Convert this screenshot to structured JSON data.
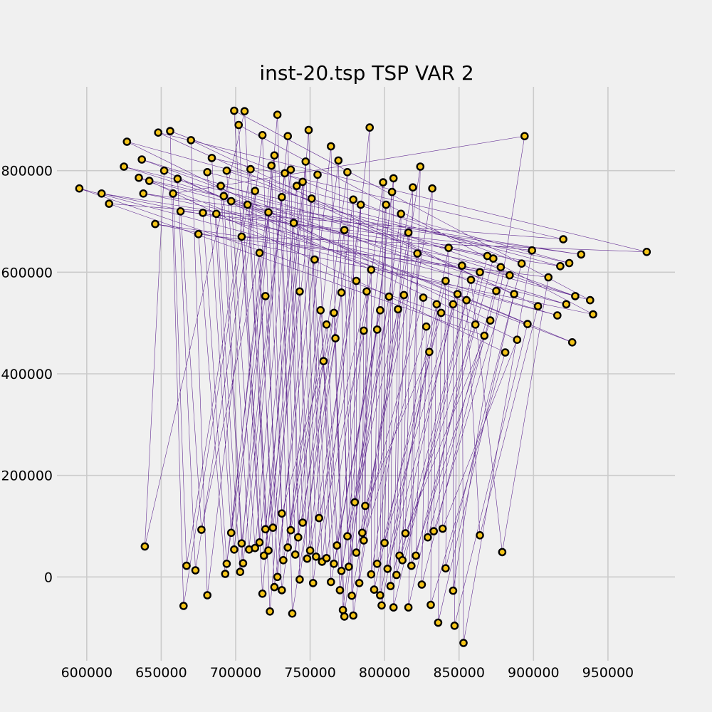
{
  "chart_data": {
    "type": "scatter",
    "title": "inst-20.tsp TSP VAR 2",
    "xlabel": "",
    "ylabel": "",
    "xlim": [
      580000,
      995000
    ],
    "ylim": [
      -165000,
      965000
    ],
    "xticks": [
      600000,
      650000,
      700000,
      750000,
      800000,
      850000,
      900000,
      950000
    ],
    "yticks": [
      0,
      200000,
      400000,
      600000,
      800000
    ],
    "xtick_labels": [
      "600000",
      "650000",
      "700000",
      "750000",
      "800000",
      "850000",
      "900000",
      "950000"
    ],
    "ytick_labels": [
      "0",
      "200000",
      "400000",
      "600000",
      "800000"
    ],
    "grid": true,
    "line_color": "#4a0a82",
    "point_fill": "#f5c518",
    "point_edge": "#000000",
    "points": [
      [
        595000,
        765000
      ],
      [
        610000,
        755000
      ],
      [
        615000,
        735000
      ],
      [
        625000,
        808000
      ],
      [
        627000,
        857000
      ],
      [
        635000,
        786000
      ],
      [
        637000,
        822000
      ],
      [
        638000,
        755000
      ],
      [
        642000,
        780000
      ],
      [
        646000,
        695000
      ],
      [
        648000,
        875000
      ],
      [
        652000,
        800000
      ],
      [
        656000,
        878000
      ],
      [
        658000,
        755000
      ],
      [
        661000,
        784000
      ],
      [
        663000,
        720000
      ],
      [
        670000,
        860000
      ],
      [
        675000,
        675000
      ],
      [
        678000,
        717000
      ],
      [
        681000,
        797000
      ],
      [
        684000,
        825000
      ],
      [
        687000,
        715000
      ],
      [
        690000,
        770000
      ],
      [
        692000,
        750000
      ],
      [
        694000,
        800000
      ],
      [
        697000,
        740000
      ],
      [
        699000,
        918000
      ],
      [
        702000,
        890000
      ],
      [
        704000,
        670000
      ],
      [
        706000,
        917000
      ],
      [
        708000,
        733000
      ],
      [
        710000,
        803000
      ],
      [
        713000,
        760000
      ],
      [
        716000,
        638000
      ],
      [
        718000,
        870000
      ],
      [
        720000,
        553000
      ],
      [
        722000,
        718000
      ],
      [
        724000,
        810000
      ],
      [
        726000,
        830000
      ],
      [
        728000,
        910000
      ],
      [
        731000,
        748000
      ],
      [
        733000,
        795000
      ],
      [
        735000,
        868000
      ],
      [
        737000,
        802000
      ],
      [
        739000,
        697000
      ],
      [
        741000,
        770000
      ],
      [
        743000,
        562000
      ],
      [
        745000,
        778000
      ],
      [
        747000,
        818000
      ],
      [
        749000,
        880000
      ],
      [
        751000,
        745000
      ],
      [
        753000,
        625000
      ],
      [
        755000,
        792000
      ],
      [
        757000,
        525000
      ],
      [
        759000,
        425000
      ],
      [
        761000,
        497000
      ],
      [
        764000,
        848000
      ],
      [
        766000,
        520000
      ],
      [
        767000,
        470000
      ],
      [
        769000,
        820000
      ],
      [
        771000,
        560000
      ],
      [
        773000,
        683000
      ],
      [
        775000,
        797000
      ],
      [
        779000,
        743000
      ],
      [
        781000,
        583000
      ],
      [
        784000,
        733000
      ],
      [
        786000,
        485000
      ],
      [
        788000,
        562000
      ],
      [
        790000,
        885000
      ],
      [
        791000,
        605000
      ],
      [
        795000,
        487000
      ],
      [
        797000,
        525000
      ],
      [
        799000,
        777000
      ],
      [
        801000,
        733000
      ],
      [
        803000,
        552000
      ],
      [
        805000,
        758000
      ],
      [
        806000,
        785000
      ],
      [
        809000,
        527000
      ],
      [
        811000,
        715000
      ],
      [
        813000,
        555000
      ],
      [
        816000,
        678000
      ],
      [
        819000,
        767000
      ],
      [
        822000,
        637000
      ],
      [
        824000,
        808000
      ],
      [
        826000,
        550000
      ],
      [
        828000,
        493000
      ],
      [
        830000,
        443000
      ],
      [
        832000,
        765000
      ],
      [
        835000,
        537000
      ],
      [
        838000,
        520000
      ],
      [
        841000,
        583000
      ],
      [
        843000,
        648000
      ],
      [
        846000,
        537000
      ],
      [
        849000,
        557000
      ],
      [
        852000,
        613000
      ],
      [
        855000,
        545000
      ],
      [
        858000,
        585000
      ],
      [
        861000,
        497000
      ],
      [
        864000,
        600000
      ],
      [
        867000,
        475000
      ],
      [
        869000,
        632000
      ],
      [
        871000,
        505000
      ],
      [
        873000,
        627000
      ],
      [
        875000,
        563000
      ],
      [
        878000,
        610000
      ],
      [
        881000,
        442000
      ],
      [
        884000,
        594000
      ],
      [
        887000,
        557000
      ],
      [
        889000,
        467000
      ],
      [
        892000,
        617000
      ],
      [
        894000,
        868000
      ],
      [
        896000,
        498000
      ],
      [
        899000,
        643000
      ],
      [
        903000,
        533000
      ],
      [
        910000,
        590000
      ],
      [
        916000,
        515000
      ],
      [
        918000,
        612000
      ],
      [
        920000,
        665000
      ],
      [
        922000,
        537000
      ],
      [
        924000,
        618000
      ],
      [
        926000,
        462000
      ],
      [
        928000,
        553000
      ],
      [
        932000,
        635000
      ],
      [
        938000,
        545000
      ],
      [
        940000,
        517000
      ],
      [
        976000,
        640000
      ],
      [
        639000,
        60000
      ],
      [
        665000,
        -57000
      ],
      [
        667000,
        22000
      ],
      [
        673000,
        13000
      ],
      [
        677000,
        93000
      ],
      [
        681000,
        -36000
      ],
      [
        693000,
        6000
      ],
      [
        694000,
        26000
      ],
      [
        697000,
        87000
      ],
      [
        699000,
        54000
      ],
      [
        703000,
        10000
      ],
      [
        704000,
        66000
      ],
      [
        705000,
        27000
      ],
      [
        709000,
        54000
      ],
      [
        713000,
        57000
      ],
      [
        716000,
        68000
      ],
      [
        718000,
        -33000
      ],
      [
        719000,
        42000
      ],
      [
        720000,
        94000
      ],
      [
        722000,
        52000
      ],
      [
        723000,
        -68000
      ],
      [
        725000,
        97000
      ],
      [
        726000,
        -20000
      ],
      [
        728000,
        0
      ],
      [
        731000,
        -26000
      ],
      [
        731000,
        125000
      ],
      [
        732000,
        33000
      ],
      [
        735000,
        58000
      ],
      [
        737000,
        92000
      ],
      [
        738000,
        -72000
      ],
      [
        740000,
        44000
      ],
      [
        742000,
        78000
      ],
      [
        743000,
        -5000
      ],
      [
        745000,
        107000
      ],
      [
        748000,
        36000
      ],
      [
        750000,
        52000
      ],
      [
        752000,
        -12000
      ],
      [
        754000,
        40000
      ],
      [
        756000,
        116000
      ],
      [
        758000,
        30000
      ],
      [
        761000,
        37000
      ],
      [
        764000,
        -10000
      ],
      [
        766000,
        26000
      ],
      [
        768000,
        62000
      ],
      [
        770000,
        -26000
      ],
      [
        771000,
        12000
      ],
      [
        772000,
        -65000
      ],
      [
        773000,
        -78000
      ],
      [
        775000,
        80000
      ],
      [
        776000,
        20000
      ],
      [
        778000,
        -37000
      ],
      [
        779000,
        -76000
      ],
      [
        780000,
        147000
      ],
      [
        781000,
        48000
      ],
      [
        783000,
        -12000
      ],
      [
        785000,
        87000
      ],
      [
        786000,
        72000
      ],
      [
        787000,
        140000
      ],
      [
        791000,
        5000
      ],
      [
        793000,
        -25000
      ],
      [
        795000,
        26000
      ],
      [
        797000,
        -36000
      ],
      [
        798000,
        -56000
      ],
      [
        800000,
        67000
      ],
      [
        802000,
        16000
      ],
      [
        804000,
        -18000
      ],
      [
        806000,
        -60000
      ],
      [
        808000,
        4000
      ],
      [
        810000,
        42000
      ],
      [
        812000,
        33000
      ],
      [
        814000,
        86000
      ],
      [
        816000,
        -60000
      ],
      [
        818000,
        22000
      ],
      [
        821000,
        42000
      ],
      [
        825000,
        -15000
      ],
      [
        829000,
        78000
      ],
      [
        831000,
        -55000
      ],
      [
        833000,
        90000
      ],
      [
        836000,
        -90000
      ],
      [
        839000,
        95000
      ],
      [
        841000,
        17000
      ],
      [
        846000,
        -27000
      ],
      [
        847000,
        -96000
      ],
      [
        853000,
        -130000
      ],
      [
        864000,
        82000
      ],
      [
        879000,
        49000
      ]
    ]
  }
}
